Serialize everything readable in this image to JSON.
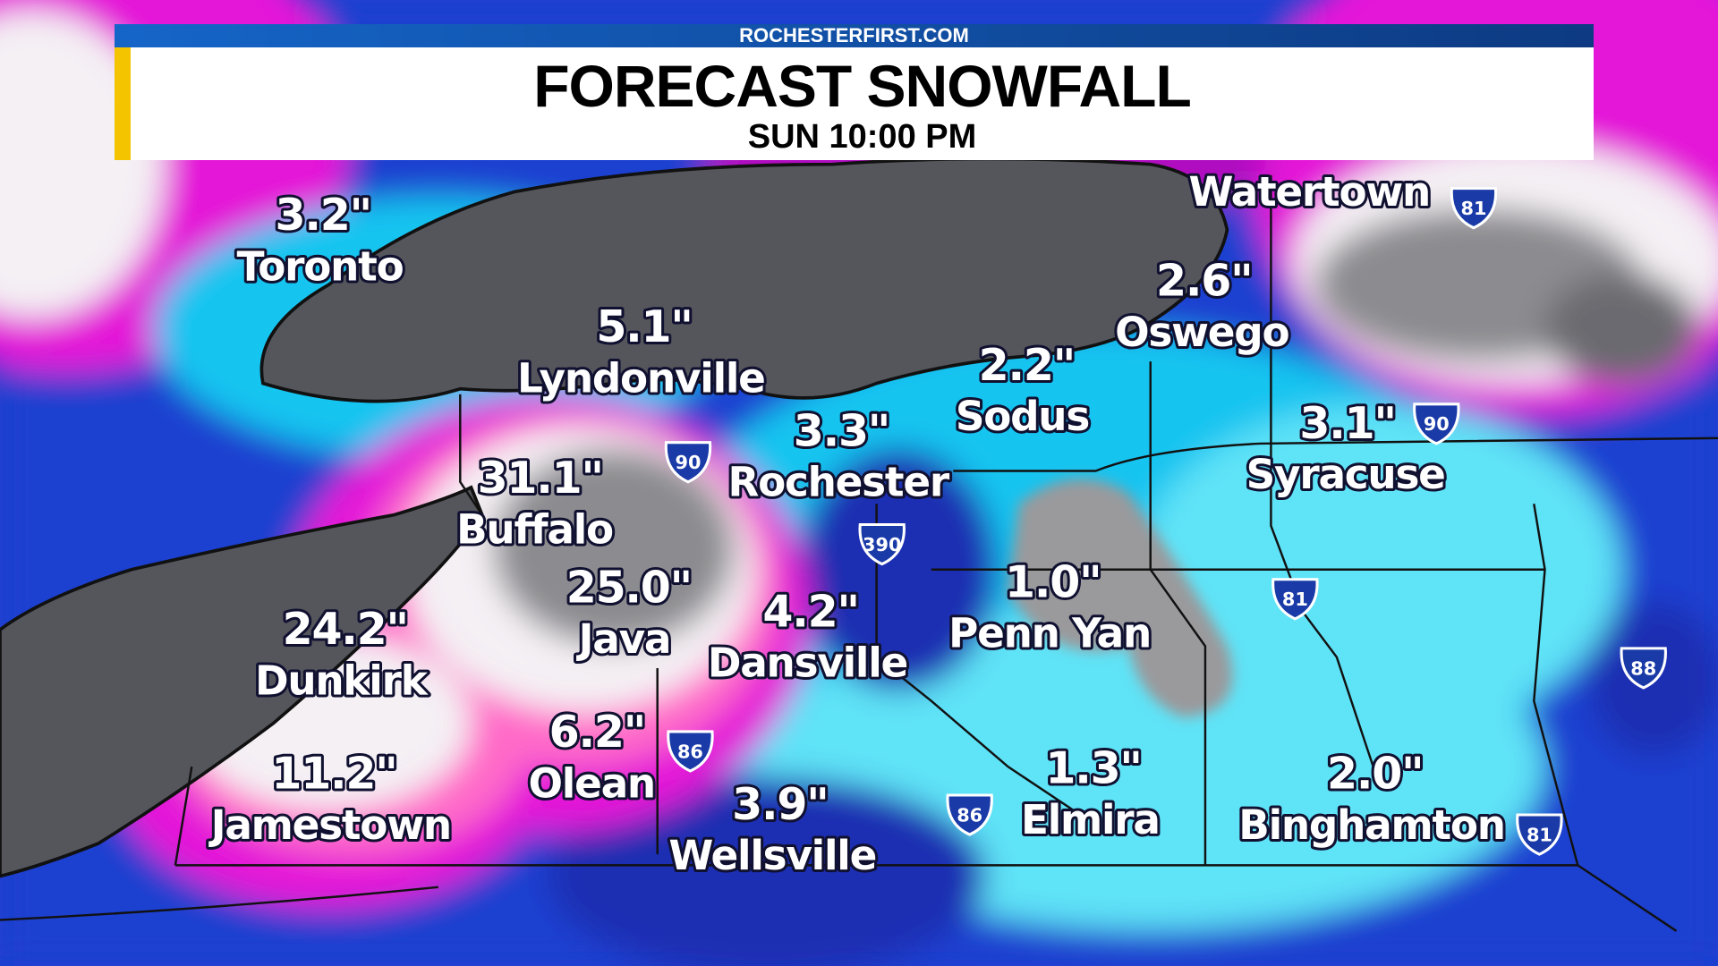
{
  "header": {
    "brand": "ROCHESTERFIRST.COM",
    "title": "FORECAST SNOWFALL",
    "subtitle": "SUN  10:00 PM",
    "accent_color": "#f5c400",
    "bar_color": "#1565c8"
  },
  "legend_colors": {
    "light_cyan": "#5fe3f7",
    "cyan": "#18c4f0",
    "blue": "#1a62ee",
    "dark_blue": "#1a2fb2",
    "magenta": "#e414d8",
    "pink": "#ff6ac8",
    "white": "#f4f0f4",
    "gray": "#8c8c90",
    "lake": "#55565c"
  },
  "locations": [
    {
      "city": "Toronto",
      "snow": "3.2\""
    },
    {
      "city": "Lyndonville",
      "snow": "5.1\""
    },
    {
      "city": "Buffalo",
      "snow": "31.1\""
    },
    {
      "city": "Rochester",
      "snow": "3.3\""
    },
    {
      "city": "Sodus",
      "snow": "2.2\""
    },
    {
      "city": "Oswego",
      "snow": "2.6\""
    },
    {
      "city": "Syracuse",
      "snow": "3.1\""
    },
    {
      "city": "Java",
      "snow": "25.0\""
    },
    {
      "city": "Dansville",
      "snow": "4.2\""
    },
    {
      "city": "Penn Yan",
      "snow": "1.0\""
    },
    {
      "city": "Dunkirk",
      "snow": "24.2\""
    },
    {
      "city": "Olean",
      "snow": "6.2\""
    },
    {
      "city": "Jamestown",
      "snow": "11.2\""
    },
    {
      "city": "Wellsville",
      "snow": "3.9\""
    },
    {
      "city": "Elmira",
      "snow": "1.3\""
    },
    {
      "city": "Binghamton",
      "snow": "2.0\""
    },
    {
      "city": "Watertown",
      "snow": ""
    }
  ],
  "interstates": [
    "90",
    "90",
    "86",
    "81",
    "88",
    "390",
    "81",
    "86",
    "81"
  ]
}
